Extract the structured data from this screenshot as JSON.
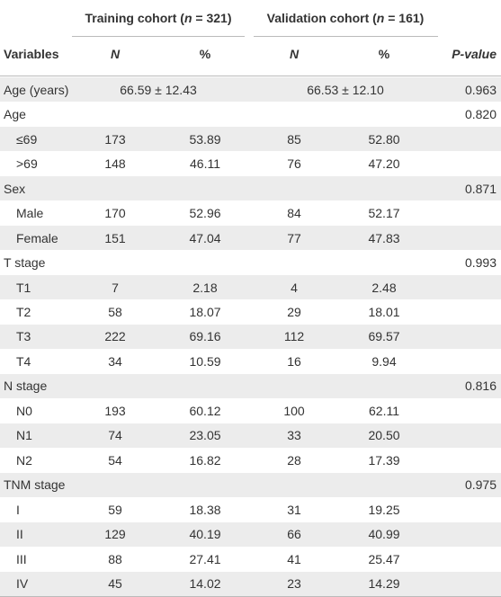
{
  "header": {
    "training": [
      "Training cohort (",
      "n",
      " = 321)"
    ],
    "validation": [
      "Validation cohort (",
      "n",
      " = 161)"
    ],
    "variables": "Variables",
    "n1": "N",
    "pct1": "%",
    "n2": "N",
    "pct2": "%",
    "pvalue": [
      "P",
      "-value"
    ]
  },
  "table": {
    "rows": [
      [
        "Age (years)",
        "66.59 ± 12.43",
        "66.53 ± 12.10",
        "0.963"
      ],
      [
        "Age",
        "0.820"
      ],
      [
        "≤69",
        "173",
        "53.89",
        "85",
        "52.80"
      ],
      [
        ">69",
        "148",
        "46.11",
        "76",
        "47.20"
      ],
      [
        "Sex",
        "0.871"
      ],
      [
        "Male",
        "170",
        "52.96",
        "84",
        "52.17"
      ],
      [
        "Female",
        "151",
        "47.04",
        "77",
        "47.83"
      ],
      [
        "T stage",
        "0.993"
      ],
      [
        "T1",
        "7",
        "2.18",
        "4",
        "2.48"
      ],
      [
        "T2",
        "58",
        "18.07",
        "29",
        "18.01"
      ],
      [
        "T3",
        "222",
        "69.16",
        "112",
        "69.57"
      ],
      [
        "T4",
        "34",
        "10.59",
        "16",
        "9.94"
      ],
      [
        "N stage",
        "0.816"
      ],
      [
        "N0",
        "193",
        "60.12",
        "100",
        "62.11"
      ],
      [
        "N1",
        "74",
        "23.05",
        "33",
        "20.50"
      ],
      [
        "N2",
        "54",
        "16.82",
        "28",
        "17.39"
      ],
      [
        "TNM stage",
        "0.975"
      ],
      [
        "I",
        "59",
        "18.38",
        "31",
        "19.25"
      ],
      [
        "II",
        "129",
        "40.19",
        "66",
        "40.99"
      ],
      [
        "III",
        "88",
        "27.41",
        "41",
        "25.47"
      ],
      [
        "IV",
        "45",
        "14.02",
        "23",
        "14.29"
      ]
    ]
  }
}
